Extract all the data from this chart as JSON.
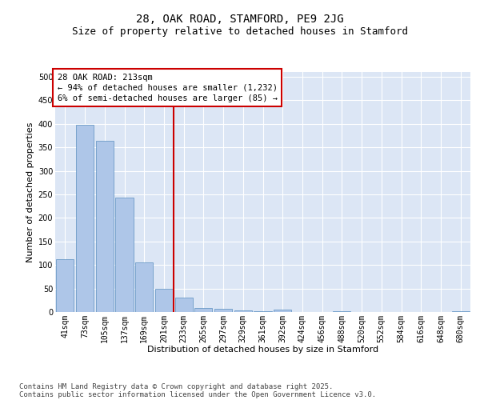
{
  "title_line1": "28, OAK ROAD, STAMFORD, PE9 2JG",
  "title_line2": "Size of property relative to detached houses in Stamford",
  "xlabel": "Distribution of detached houses by size in Stamford",
  "ylabel": "Number of detached properties",
  "categories": [
    "41sqm",
    "73sqm",
    "105sqm",
    "137sqm",
    "169sqm",
    "201sqm",
    "233sqm",
    "265sqm",
    "297sqm",
    "329sqm",
    "361sqm",
    "392sqm",
    "424sqm",
    "456sqm",
    "488sqm",
    "520sqm",
    "552sqm",
    "584sqm",
    "616sqm",
    "648sqm",
    "680sqm"
  ],
  "values": [
    113,
    397,
    363,
    243,
    105,
    50,
    30,
    8,
    6,
    4,
    1,
    5,
    0,
    0,
    1,
    0,
    0,
    0,
    0,
    0,
    1
  ],
  "bar_color": "#aec6e8",
  "bar_edge_color": "#5a8fc0",
  "vline_color": "#cc0000",
  "ylim": [
    0,
    510
  ],
  "yticks": [
    0,
    50,
    100,
    150,
    200,
    250,
    300,
    350,
    400,
    450,
    500
  ],
  "annotation_title": "28 OAK ROAD: 213sqm",
  "annotation_line1": "← 94% of detached houses are smaller (1,232)",
  "annotation_line2": "6% of semi-detached houses are larger (85) →",
  "annotation_box_color": "#ffffff",
  "annotation_box_edge": "#cc0000",
  "plot_bg_color": "#dce6f5",
  "footer_line1": "Contains HM Land Registry data © Crown copyright and database right 2025.",
  "footer_line2": "Contains public sector information licensed under the Open Government Licence v3.0.",
  "title_fontsize": 10,
  "subtitle_fontsize": 9,
  "axis_label_fontsize": 8,
  "tick_fontsize": 7,
  "annotation_fontsize": 7.5,
  "footer_fontsize": 6.5
}
